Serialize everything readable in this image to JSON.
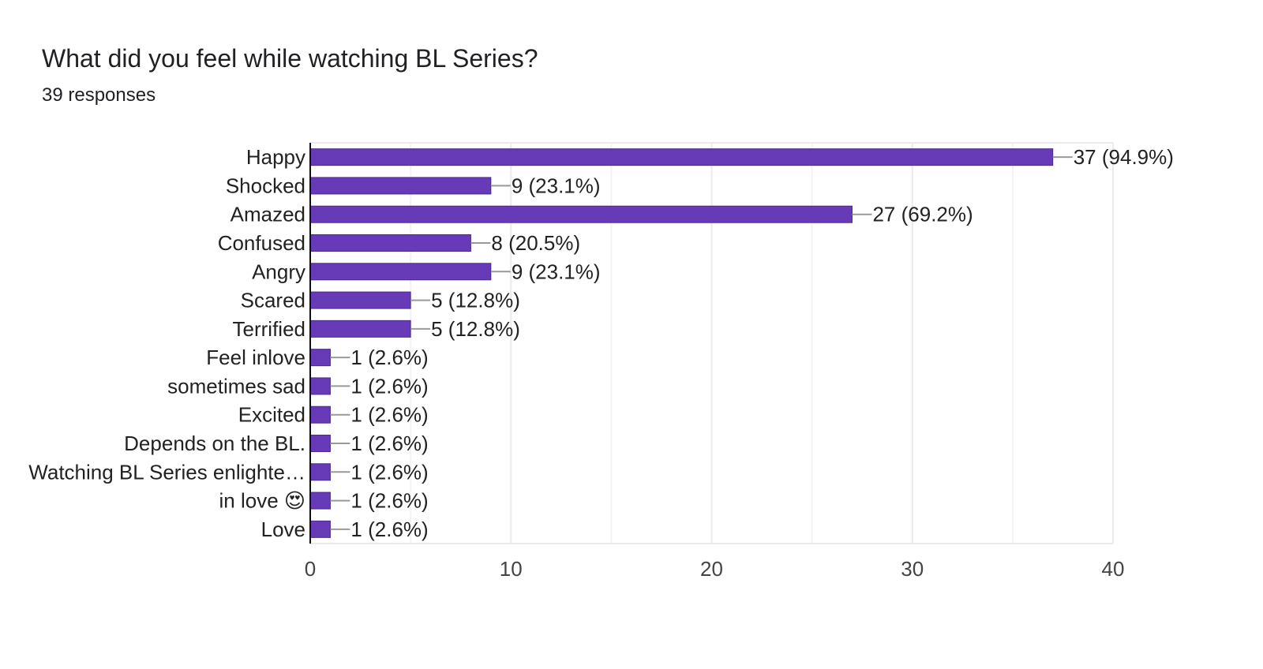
{
  "header": {
    "question_title": "What did you feel while watching BL Series?",
    "response_count": "39 responses"
  },
  "colors": {
    "bar": "#673ab7",
    "bar_stroke": "#4a2a8a",
    "grid": "#ebebeb",
    "axis": "#111111",
    "connector": "#999999"
  },
  "chart_data": {
    "type": "bar",
    "orientation": "horizontal",
    "title": "What did you feel while watching BL Series?",
    "subtitle": "39 responses",
    "xlabel": "",
    "ylabel": "",
    "xlim": [
      0,
      40
    ],
    "x_ticks": [
      0,
      10,
      20,
      30,
      40
    ],
    "grid": true,
    "categories": [
      "Happy",
      "Shocked",
      "Amazed",
      "Confused",
      "Angry",
      "Scared",
      "Terrified",
      "Feel inlove",
      "sometimes sad",
      "Excited",
      "Depends on the BL.",
      "Watching BL Series enlighte…",
      "in love 😍",
      "Love"
    ],
    "values": [
      37,
      9,
      27,
      8,
      9,
      5,
      5,
      1,
      1,
      1,
      1,
      1,
      1,
      1
    ],
    "data_labels": [
      "37 (94.9%)",
      "9 (23.1%)",
      "27 (69.2%)",
      "8 (20.5%)",
      "9 (23.1%)",
      "5 (12.8%)",
      "5 (12.8%)",
      "1 (2.6%)",
      "1 (2.6%)",
      "1 (2.6%)",
      "1 (2.6%)",
      "1 (2.6%)",
      "1 (2.6%)",
      "1 (2.6%)"
    ]
  }
}
